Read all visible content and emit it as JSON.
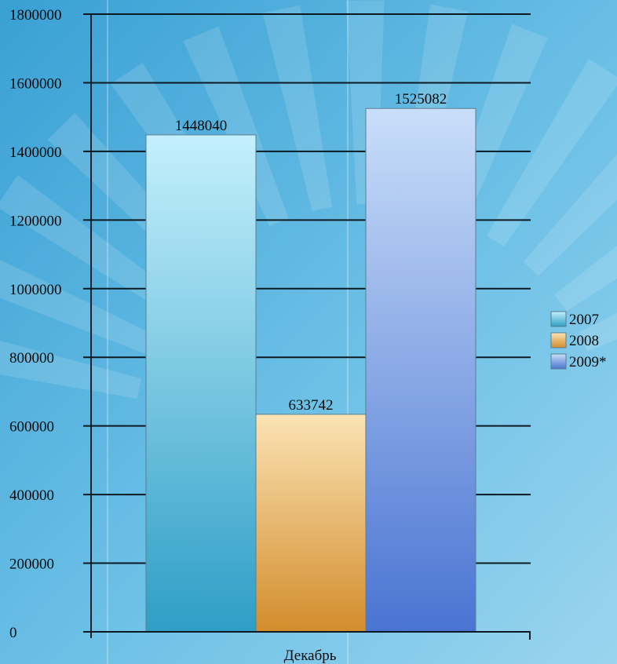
{
  "chart_data": {
    "type": "bar",
    "categories": [
      "Декабрь"
    ],
    "series": [
      {
        "name": "2007",
        "values": [
          1448040
        ],
        "color_top": "#c4f0fc",
        "color_bottom": "#2e9ec6"
      },
      {
        "name": "2008",
        "values": [
          633742
        ],
        "color_top": "#fbe3b4",
        "color_bottom": "#d38d2c"
      },
      {
        "name": "2009*",
        "values": [
          1525082
        ],
        "color_top": "#c9def9",
        "color_bottom": "#4a74d2"
      }
    ],
    "data_labels": [
      "1448040",
      "633742",
      "1525082"
    ],
    "ylim": [
      0,
      1800000
    ],
    "y_ticks": [
      "0",
      "200000",
      "400000",
      "600000",
      "800000",
      "1000000",
      "1200000",
      "1400000",
      "1600000",
      "1800000"
    ],
    "x_tick_label": "Декабрь",
    "title": "",
    "xlabel": "",
    "ylabel": "",
    "grid": true,
    "legend_position": "right"
  },
  "colors": {
    "background_light": "#9ad4ee",
    "background_dark": "#39a0d4",
    "grid": "#0d1a22",
    "text": "#0a0a0a"
  }
}
